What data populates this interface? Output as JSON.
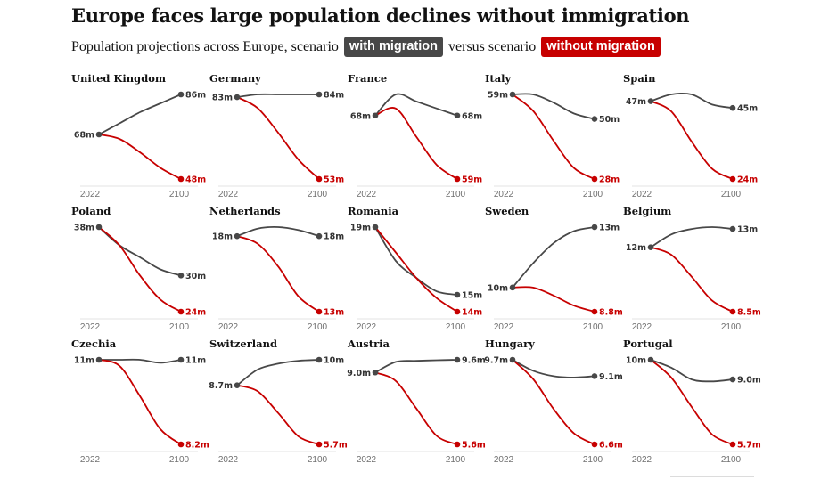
{
  "header": {
    "title": "Europe faces large population declines without immigration",
    "subtitle_prefix": "Population projections across Europe, scenario",
    "legend_with": "with migration",
    "subtitle_middle": "versus scenario",
    "legend_without": "without migration"
  },
  "colors": {
    "with_migration": "#484848",
    "without_migration": "#c70000"
  },
  "chart_data": {
    "type": "line",
    "x_start": "2022",
    "x_end": "2100",
    "panels": [
      {
        "country": "United Kingdom",
        "start": 68,
        "start_label": "68m",
        "with": [
          68,
          73,
          78,
          82,
          86
        ],
        "with_label": "86m",
        "without": [
          68,
          66,
          60,
          53,
          48
        ],
        "without_label": "48m"
      },
      {
        "country": "Germany",
        "start": 83,
        "start_label": "83m",
        "with": [
          83,
          84,
          84,
          84,
          84
        ],
        "with_label": "84m",
        "without": [
          83,
          79,
          70,
          60,
          53
        ],
        "without_label": "53m"
      },
      {
        "country": "France",
        "start": 68,
        "start_label": "68m",
        "with": [
          68,
          71,
          70,
          69,
          68
        ],
        "with_label": "68m",
        "without": [
          68,
          69,
          65,
          61,
          59
        ],
        "without_label": "59m"
      },
      {
        "country": "Italy",
        "start": 59,
        "start_label": "59m",
        "with": [
          59,
          59,
          56,
          52,
          50
        ],
        "with_label": "50m",
        "without": [
          59,
          53,
          42,
          32,
          28
        ],
        "without_label": "28m"
      },
      {
        "country": "Spain",
        "start": 47,
        "start_label": "47m",
        "with": [
          47,
          49,
          49,
          46,
          45
        ],
        "with_label": "45m",
        "without": [
          47,
          44,
          35,
          27,
          24
        ],
        "without_label": "24m"
      },
      {
        "country": "Poland",
        "start": 38,
        "start_label": "38m",
        "with": [
          38,
          35,
          33,
          31,
          30
        ],
        "with_label": "30m",
        "without": [
          38,
          35,
          30,
          26,
          24
        ],
        "without_label": "24m"
      },
      {
        "country": "Netherlands",
        "start": 18,
        "start_label": "18m",
        "with": [
          18,
          18.5,
          18.6,
          18.4,
          18
        ],
        "with_label": "18m",
        "without": [
          18,
          17.5,
          16,
          14,
          13
        ],
        "without_label": "13m"
      },
      {
        "country": "Romania",
        "start": 19,
        "start_label": "19m",
        "with": [
          19,
          17,
          16,
          15.2,
          15
        ],
        "with_label": "15m",
        "without": [
          19,
          17.5,
          16,
          14.8,
          14
        ],
        "without_label": "14m"
      },
      {
        "country": "Sweden",
        "start": 10,
        "start_label": "10m",
        "with": [
          10,
          11.2,
          12.2,
          12.8,
          13
        ],
        "with_label": "13m",
        "without": [
          10,
          10,
          9.6,
          9.1,
          8.8
        ],
        "without_label": "8.8m"
      },
      {
        "country": "Belgium",
        "start": 12,
        "start_label": "12m",
        "with": [
          12,
          12.7,
          13,
          13.1,
          13
        ],
        "with_label": "13m",
        "without": [
          12,
          11.6,
          10.4,
          9.1,
          8.5
        ],
        "without_label": "8.5m"
      },
      {
        "country": "Czechia",
        "start": 11,
        "start_label": "11m",
        "with": [
          11,
          11,
          11,
          10.9,
          11
        ],
        "with_label": "11m",
        "without": [
          11,
          10.8,
          9.8,
          8.7,
          8.2
        ],
        "without_label": "8.2m"
      },
      {
        "country": "Switzerland",
        "start": 8.7,
        "start_label": "8.7m",
        "with": [
          8.7,
          9.5,
          9.8,
          9.95,
          10
        ],
        "with_label": "10m",
        "without": [
          8.7,
          8.4,
          7.3,
          6.1,
          5.7
        ],
        "without_label": "5.7m"
      },
      {
        "country": "Austria",
        "start": 9.0,
        "start_label": "9.0m",
        "with": [
          9.0,
          9.5,
          9.55,
          9.58,
          9.6
        ],
        "with_label": "9.6m",
        "without": [
          9.0,
          8.6,
          7.3,
          6.0,
          5.6
        ],
        "without_label": "5.6m"
      },
      {
        "country": "Hungary",
        "start": 9.7,
        "start_label": "9.7m",
        "with": [
          9.7,
          9.3,
          9.1,
          9.05,
          9.1
        ],
        "with_label": "9.1m",
        "without": [
          9.7,
          9.0,
          7.9,
          7.0,
          6.6
        ],
        "without_label": "6.6m"
      },
      {
        "country": "Portugal",
        "start": 10,
        "start_label": "10m",
        "with": [
          10,
          9.6,
          9.0,
          8.9,
          9.0
        ],
        "with_label": "9.0m",
        "without": [
          10,
          9.1,
          7.6,
          6.2,
          5.7
        ],
        "without_label": "5.7m"
      }
    ]
  }
}
